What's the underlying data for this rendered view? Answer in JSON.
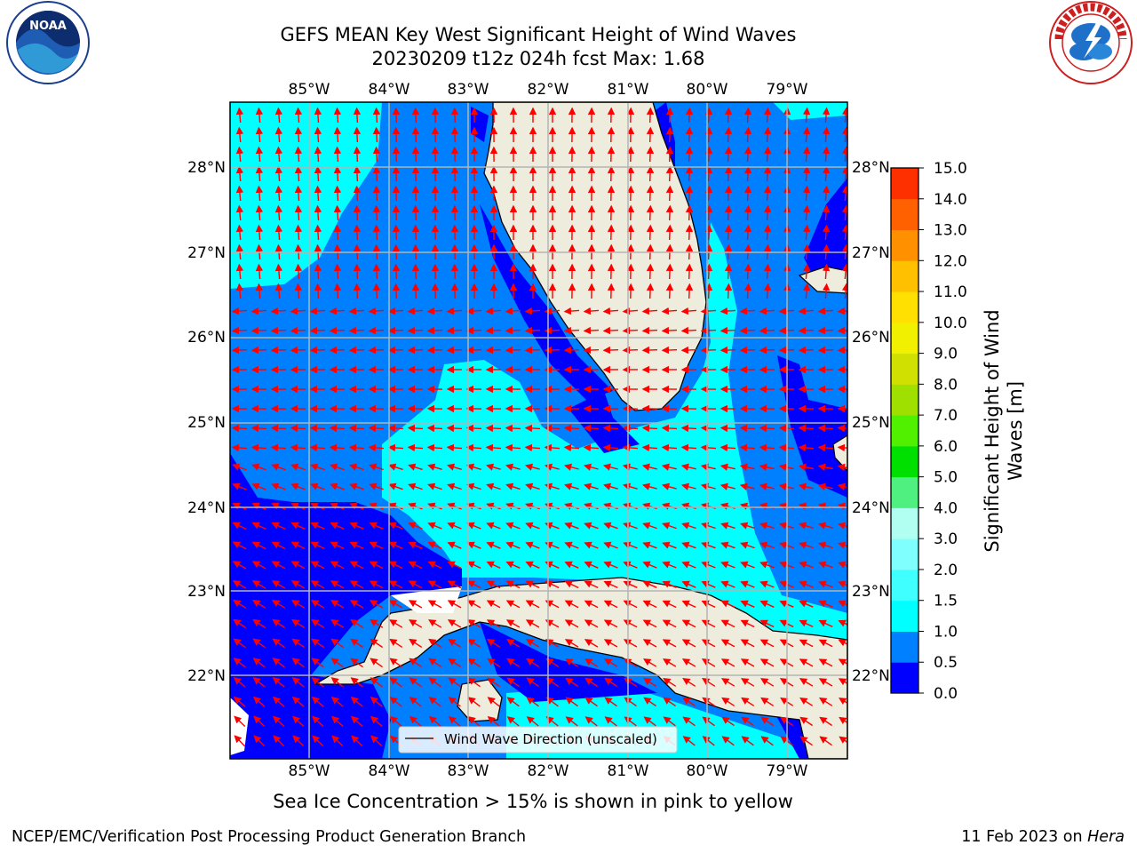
{
  "title": {
    "line1": "GEFS MEAN Key West Significant Height of Wind Waves",
    "line2": "20230209 t12z 024h fcst   Max: 1.68"
  },
  "map": {
    "lon_labels": [
      "85°W",
      "84°W",
      "83°W",
      "82°W",
      "81°W",
      "80°W",
      "79°W"
    ],
    "lat_labels": [
      "28°N",
      "27°N",
      "26°N",
      "25°N",
      "24°N",
      "23°N",
      "22°N"
    ],
    "legend_text": "Wind Wave Direction (unscaled)",
    "colors": {
      "land": "#eeecdc",
      "arrow": "#ff0000",
      "grid": "#b4b4b4"
    }
  },
  "colorbar": {
    "label_line1": "Significant Height of Wind",
    "label_line2": "Waves [m]",
    "ticks": [
      "0.0",
      "0.5",
      "1.0",
      "1.5",
      "2.0",
      "3.0",
      "4.0",
      "5.0",
      "6.0",
      "7.0",
      "8.0",
      "9.0",
      "10.0",
      "11.0",
      "12.0",
      "13.0",
      "14.0",
      "15.0"
    ],
    "colors": [
      "#0000ff",
      "#0080ff",
      "#00ffff",
      "#40ffff",
      "#80ffff",
      "#b0fff0",
      "#50f080",
      "#00e000",
      "#50f000",
      "#a0e000",
      "#d0e000",
      "#f0f000",
      "#ffe000",
      "#ffc000",
      "#ff9000",
      "#ff6000",
      "#ff3000",
      "#ff0000"
    ]
  },
  "subtitle": "Sea Ice Concentration > 15% is shown in pink to yellow",
  "footer": {
    "left": "NCEP/EMC/Verification Post Processing Product Generation Branch",
    "right_prefix": "11 Feb 2023 on ",
    "right_host": "Hera"
  },
  "logos": {
    "noaa_text": "NOAA",
    "nws_text": "NATIONAL WEATHER SERVICE"
  }
}
